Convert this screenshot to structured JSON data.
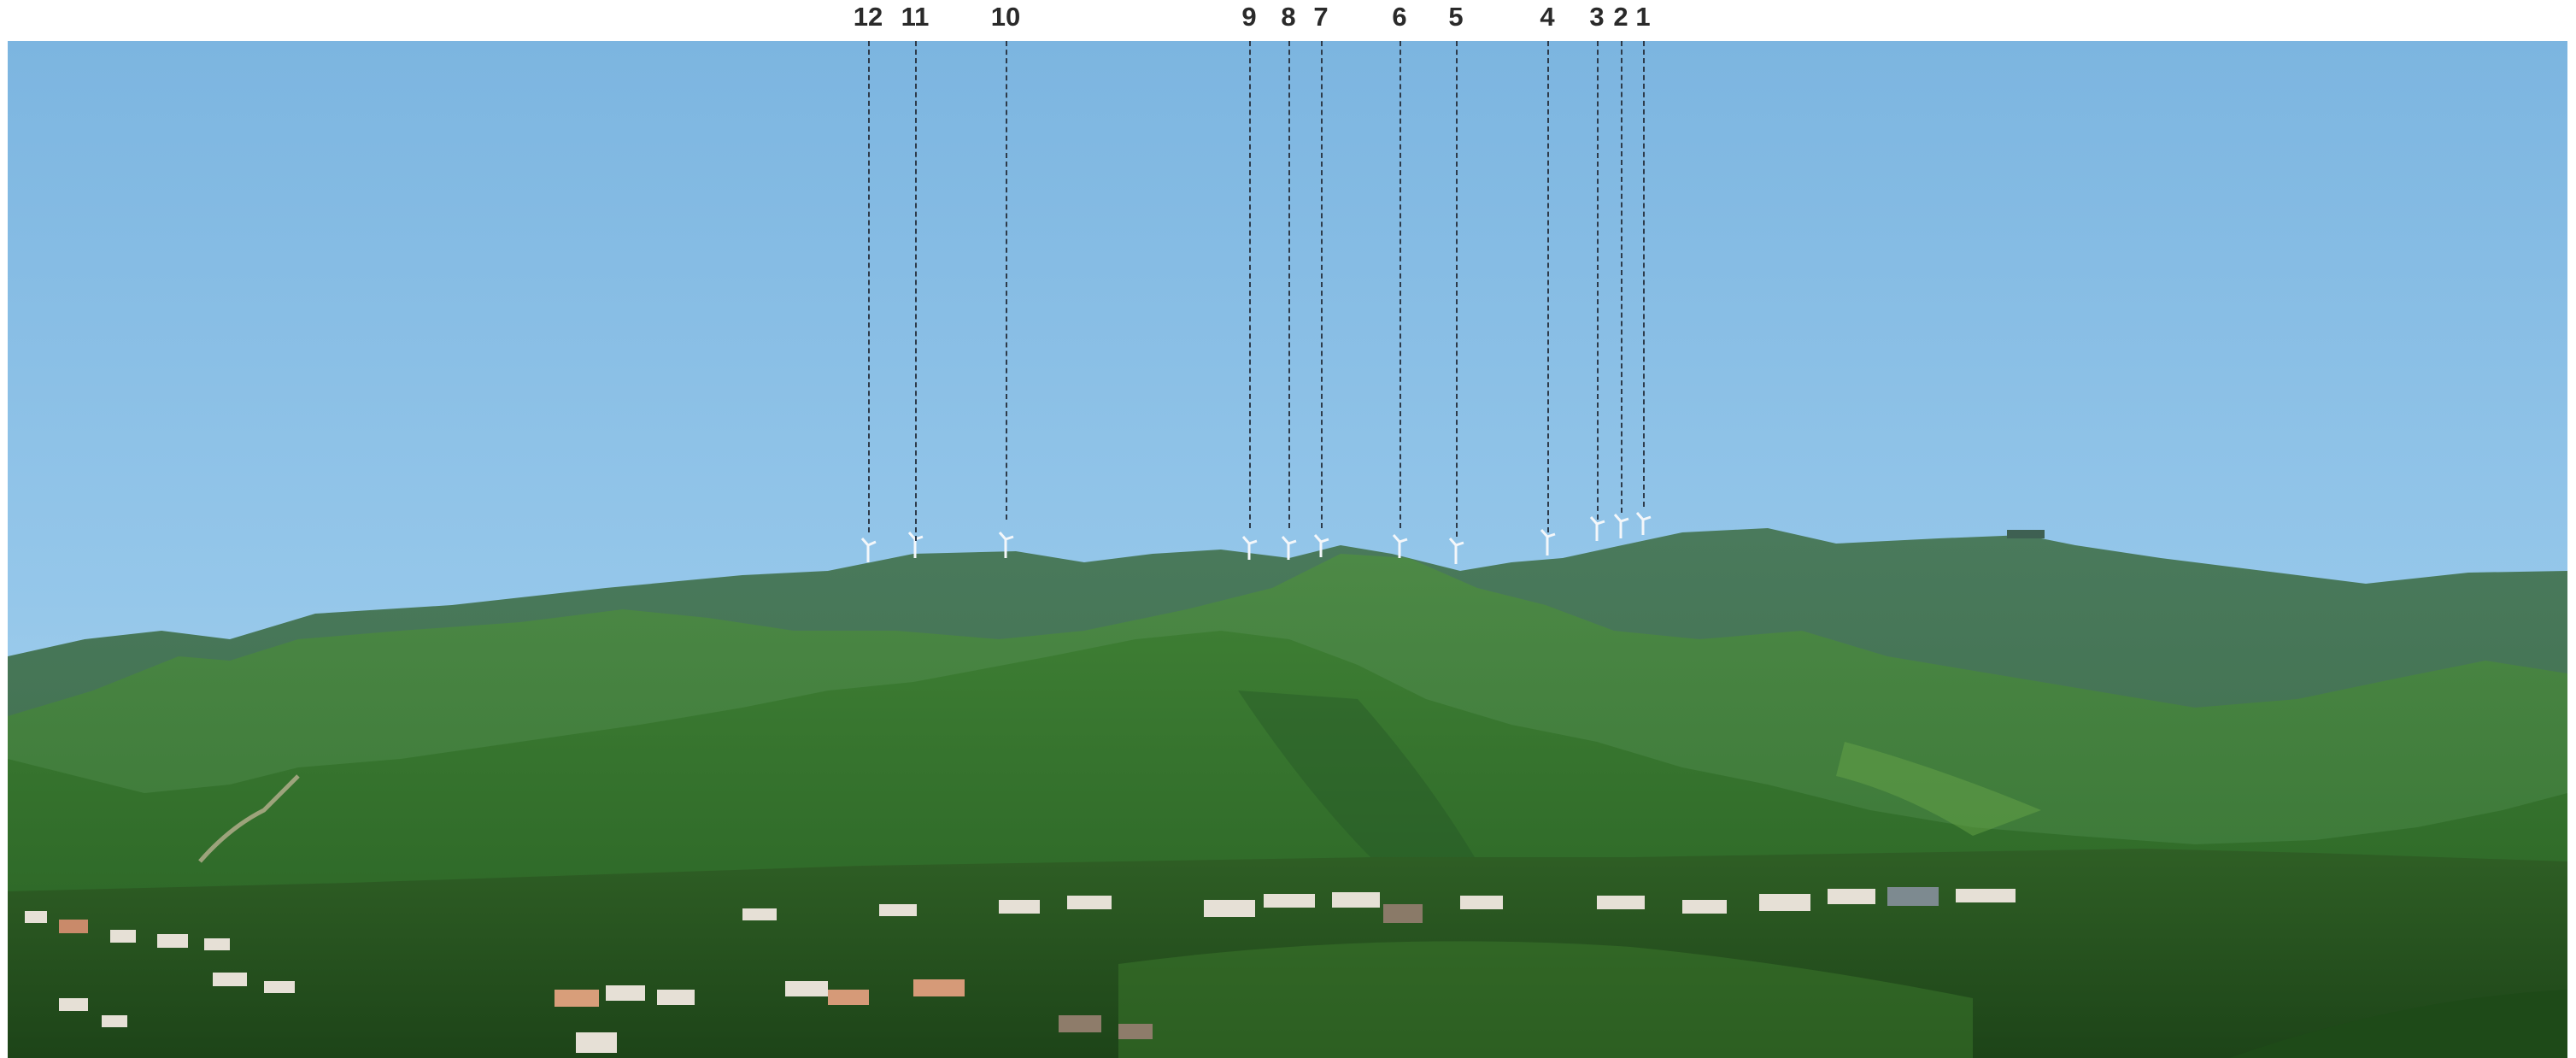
{
  "turbine_labels": [
    "12",
    "11",
    "10",
    "9",
    "8",
    "7",
    "6",
    "5",
    "4",
    "3",
    "2",
    "1"
  ],
  "colors": {
    "sky_top": "#7db6e0",
    "sky_bottom": "#a9d3ee",
    "far_ridge": "#3f6e4c",
    "mid_hills": "#3d7a3a",
    "near_hills": "#2f6a2a",
    "foreground_bush": "#244f1e",
    "leader_line": "#2e3b4a"
  },
  "icons": [
    "wind-turbine-icon",
    "house-icon"
  ]
}
